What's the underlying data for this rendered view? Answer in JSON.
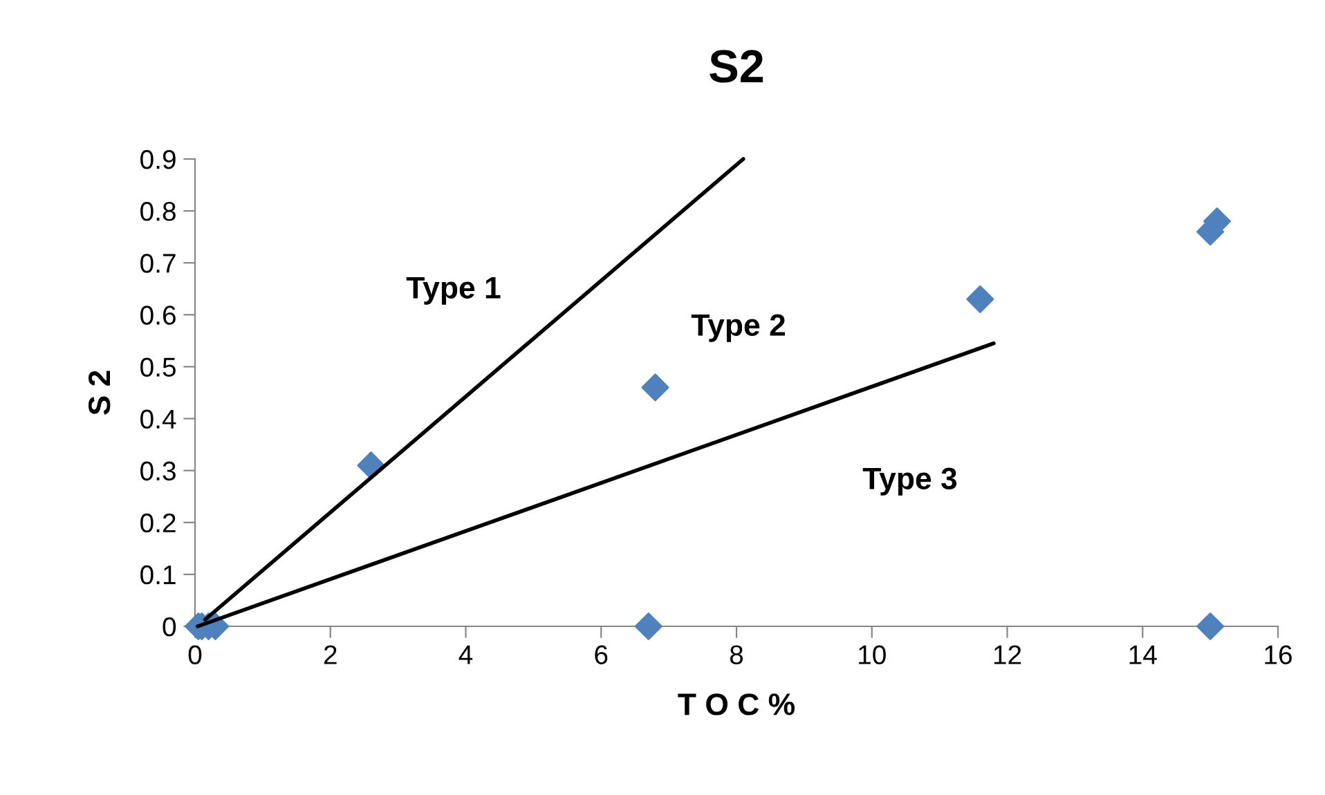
{
  "chart_data": {
    "type": "scatter",
    "title": "S2",
    "xlabel": "T O C %",
    "ylabel": "S 2",
    "xlim": [
      0,
      16
    ],
    "xticks": [
      0,
      2,
      4,
      6,
      8,
      10,
      12,
      14,
      16
    ],
    "ylim": [
      0,
      0.9
    ],
    "yticks": [
      0,
      0.1,
      0.2,
      0.3,
      0.4,
      0.5,
      0.6,
      0.7,
      0.8,
      0.9
    ],
    "grid": false,
    "legend": false,
    "marker": "diamond",
    "series": [
      {
        "color": "#4f81bd",
        "x": [
          0.05,
          0.1,
          0.2,
          0.3,
          2.6,
          6.8,
          6.7,
          11.6,
          15.0,
          15.1,
          15.0
        ],
        "values": [
          0,
          0,
          0,
          0,
          0.31,
          0.46,
          0,
          0.63,
          0.76,
          0.78,
          0
        ]
      },
      {
        "type": "line",
        "marker": "none",
        "color": "#000000",
        "x": [
          0.15,
          8.1
        ],
        "values": [
          0.013,
          0.9
        ]
      },
      {
        "type": "line",
        "marker": "none",
        "color": "#000000",
        "x": [
          0.04,
          11.8
        ],
        "values": [
          0,
          0.545
        ]
      }
    ],
    "annotations": [
      "Type 1",
      "Type 2",
      "Type 3"
    ]
  }
}
